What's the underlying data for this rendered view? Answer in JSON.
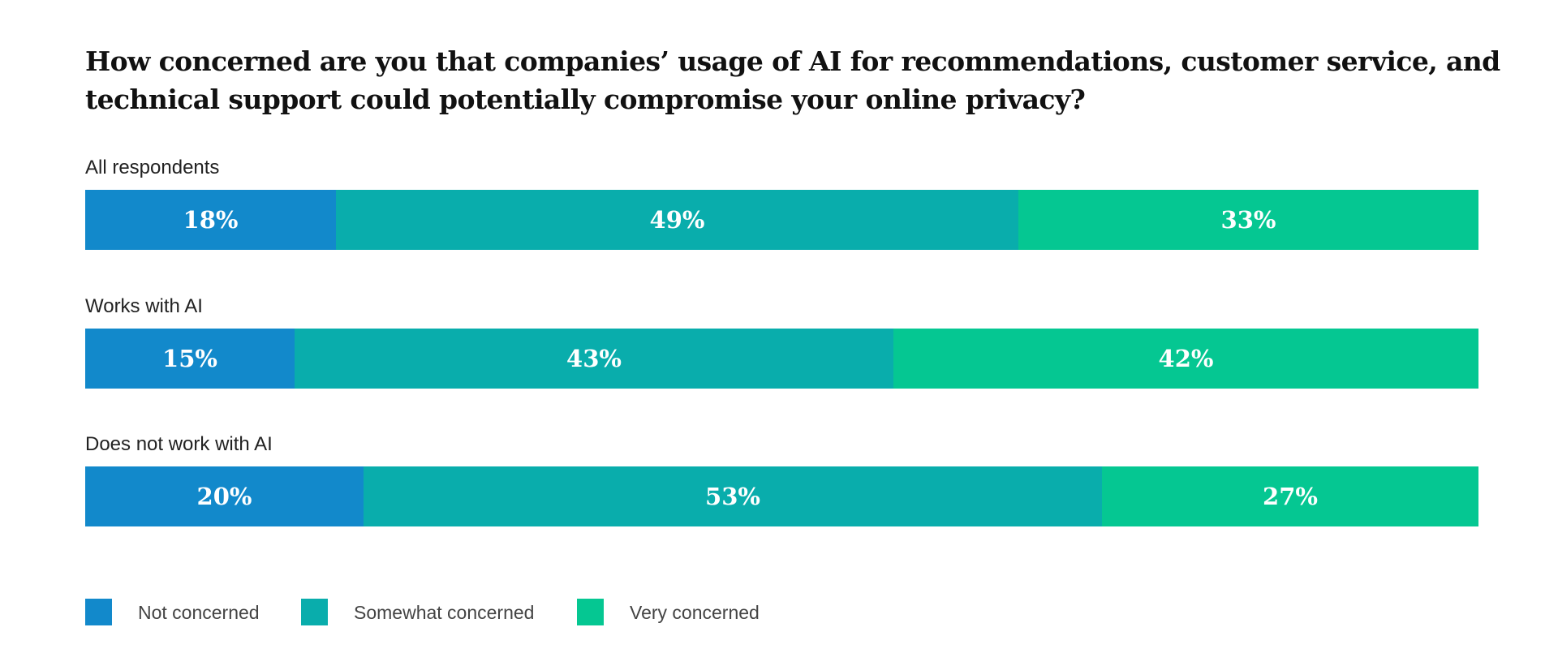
{
  "chart_data": {
    "type": "bar",
    "orientation": "horizontal",
    "stacked": true,
    "title": "How concerned are you that companies’ usage of AI for recommendations, customer service, and technical support could potentially compromise your online privacy?",
    "categories": [
      "All respondents",
      "Works with AI",
      "Does not work with AI"
    ],
    "series": [
      {
        "name": "Not concerned",
        "color": "#1289CB",
        "values": [
          18,
          15,
          20
        ],
        "labels": [
          "18%",
          "15%",
          "20%"
        ]
      },
      {
        "name": "Somewhat concerned",
        "color": "#09ADAC",
        "values": [
          49,
          43,
          53
        ],
        "labels": [
          "49%",
          "43%",
          "53%"
        ]
      },
      {
        "name": "Very concerned",
        "color": "#05C792",
        "values": [
          33,
          42,
          27
        ],
        "labels": [
          "33%",
          "42%",
          "27%"
        ]
      }
    ],
    "xlim": [
      0,
      100
    ],
    "grid": false,
    "legend": "bottom-left"
  }
}
